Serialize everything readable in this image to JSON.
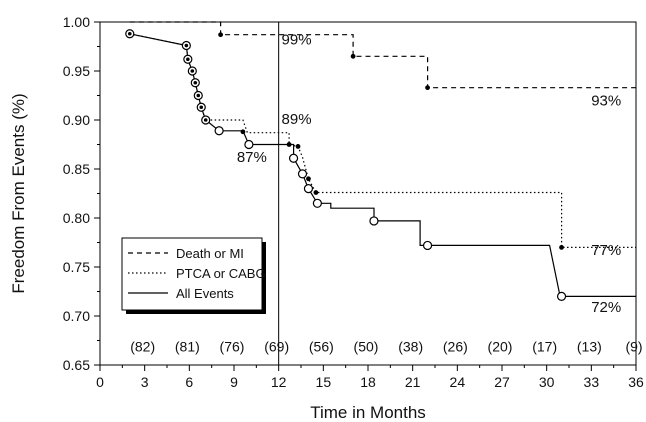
{
  "chart_data": {
    "type": "line",
    "title": "",
    "xlabel": "Time in Months",
    "ylabel": "Freedom From Events (%)",
    "xlim": [
      0,
      36
    ],
    "ylim": [
      0.65,
      1.0
    ],
    "x_ticks": [
      0,
      3,
      6,
      9,
      12,
      15,
      18,
      21,
      24,
      27,
      30,
      33,
      36
    ],
    "y_ticks": [
      0.65,
      0.7,
      0.75,
      0.8,
      0.85,
      0.9,
      0.95,
      1.0
    ],
    "y_tick_labels": [
      "0.65",
      "0.70",
      "0.75",
      "0.80",
      "0.85",
      "0.90",
      "0.95",
      "1.00"
    ],
    "grid": false,
    "vertical_reference_x": 12,
    "legend_position": "bottom-left",
    "series": [
      {
        "name": "Death or MI",
        "style": "dashed",
        "points": [
          [
            2,
            1.0
          ],
          [
            8.1,
            1.0
          ],
          [
            8.1,
            0.987
          ],
          [
            17,
            0.987
          ],
          [
            17,
            0.965
          ],
          [
            22,
            0.965
          ],
          [
            22,
            0.933
          ],
          [
            36,
            0.933
          ]
        ],
        "markers": [
          [
            8.1,
            0.987
          ],
          [
            17,
            0.965
          ],
          [
            22,
            0.933
          ]
        ],
        "marker_style": "filled-dot"
      },
      {
        "name": "PTCA or CABG",
        "style": "dotted",
        "points": [
          [
            2,
            0.988
          ],
          [
            5.8,
            0.976
          ],
          [
            5.9,
            0.962
          ],
          [
            6.2,
            0.95
          ],
          [
            6.4,
            0.938
          ],
          [
            6.6,
            0.925
          ],
          [
            6.8,
            0.913
          ],
          [
            7.1,
            0.9
          ],
          [
            9.6,
            0.9
          ],
          [
            9.9,
            0.887
          ],
          [
            12.7,
            0.887
          ],
          [
            12.7,
            0.875
          ],
          [
            13.3,
            0.873
          ],
          [
            13.6,
            0.862
          ],
          [
            14,
            0.84
          ],
          [
            14.5,
            0.826
          ],
          [
            31,
            0.826
          ],
          [
            31,
            0.77
          ],
          [
            36,
            0.77
          ]
        ],
        "markers": [
          [
            9.6,
            0.888
          ],
          [
            12.7,
            0.875
          ],
          [
            13.3,
            0.873
          ],
          [
            14,
            0.84
          ],
          [
            14.5,
            0.826
          ],
          [
            31,
            0.77
          ]
        ],
        "marker_style": "filled-dot"
      },
      {
        "name": "All Events",
        "style": "solid",
        "points": [
          [
            2,
            0.988
          ],
          [
            5.8,
            0.976
          ],
          [
            5.9,
            0.962
          ],
          [
            6.2,
            0.95
          ],
          [
            6.4,
            0.938
          ],
          [
            6.6,
            0.925
          ],
          [
            6.8,
            0.913
          ],
          [
            7.1,
            0.9
          ],
          [
            8,
            0.889
          ],
          [
            9.6,
            0.889
          ],
          [
            10,
            0.875
          ],
          [
            13,
            0.875
          ],
          [
            13,
            0.861
          ],
          [
            13.6,
            0.845
          ],
          [
            14,
            0.83
          ],
          [
            14.6,
            0.815
          ],
          [
            15.5,
            0.815
          ],
          [
            15.5,
            0.81
          ],
          [
            18.4,
            0.81
          ],
          [
            18.4,
            0.797
          ],
          [
            21.5,
            0.797
          ],
          [
            21.5,
            0.772
          ],
          [
            30.2,
            0.772
          ],
          [
            30.9,
            0.72
          ],
          [
            36,
            0.72
          ]
        ],
        "markers": [
          [
            2,
            0.988
          ],
          [
            5.8,
            0.976
          ],
          [
            5.9,
            0.962
          ],
          [
            6.2,
            0.95
          ],
          [
            6.4,
            0.938
          ],
          [
            6.6,
            0.925
          ],
          [
            6.8,
            0.913
          ],
          [
            7.1,
            0.9
          ],
          [
            8,
            0.889
          ],
          [
            10,
            0.875
          ],
          [
            13,
            0.861
          ],
          [
            13.6,
            0.845
          ],
          [
            14,
            0.83
          ],
          [
            14.6,
            0.815
          ],
          [
            18.4,
            0.797
          ],
          [
            22,
            0.772
          ],
          [
            31,
            0.72
          ]
        ],
        "marker_style": "open-circle"
      }
    ],
    "annotations": [
      {
        "text": "99%",
        "x": 13.2,
        "y": 0.977
      },
      {
        "text": "89%",
        "x": 13.2,
        "y": 0.896
      },
      {
        "text": "87%",
        "x": 10.2,
        "y": 0.857
      },
      {
        "text": "93%",
        "x": 34,
        "y": 0.915
      },
      {
        "text": "77%",
        "x": 34,
        "y": 0.762
      },
      {
        "text": "72%",
        "x": 34,
        "y": 0.704
      }
    ],
    "at_risk": {
      "x": [
        3,
        6,
        9,
        12,
        15,
        18,
        21,
        24,
        27,
        30,
        33,
        36
      ],
      "labels": [
        "(82)",
        "(81)",
        "(76)",
        "(69)",
        "(56)",
        "(50)",
        "(38)",
        "(26)",
        "(20)",
        "(17)",
        "(13)",
        "(9)"
      ],
      "y": 0.669
    }
  }
}
